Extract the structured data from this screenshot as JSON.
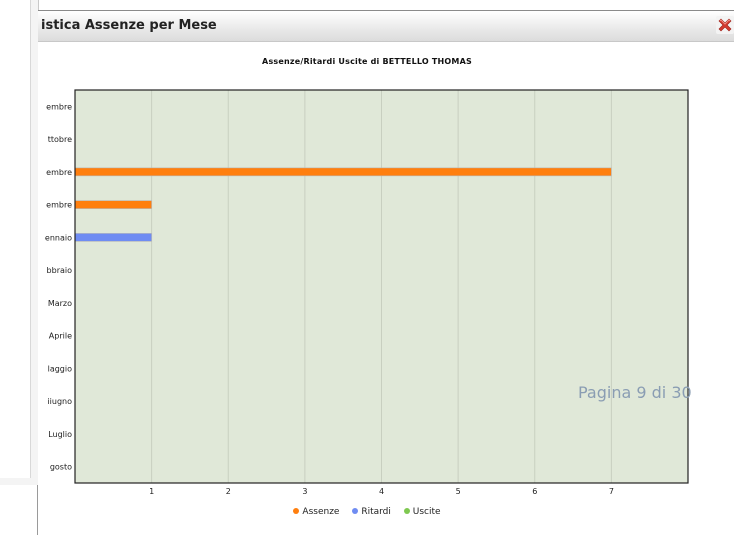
{
  "window": {
    "title": "istica Assenze per Mese",
    "close_icon": "close-icon",
    "close_color": "#d33a2f"
  },
  "watermark": "Pagina 9 di 30",
  "colors": {
    "plot_bg": "#e0e8d8",
    "grid": "#c8cfc0",
    "assenze": "#ff7f0e",
    "ritardi": "#6f8cf2",
    "uscite": "#7ec850"
  },
  "chart_data": {
    "type": "bar",
    "orientation": "horizontal",
    "title": "Assenze/Ritardi Uscite di BETTELLO THOMAS",
    "categories": [
      "embre",
      "ttobre",
      "embre",
      "embre",
      "ennaio",
      "bbraio",
      "Marzo",
      "Aprile",
      "laggio",
      "iiugno",
      "Luglio",
      "gosto"
    ],
    "x_ticks": [
      1,
      2,
      3,
      4,
      5,
      6,
      7
    ],
    "xlim": [
      0,
      8
    ],
    "grid": true,
    "legend_position": "bottom",
    "series": [
      {
        "name": "Assenze",
        "values": [
          0,
          0,
          7,
          1,
          0,
          0,
          0,
          0,
          0,
          0,
          0,
          0
        ]
      },
      {
        "name": "Ritardi",
        "values": [
          0,
          0,
          0,
          0,
          1,
          0,
          0,
          0,
          0,
          0,
          0,
          0
        ]
      },
      {
        "name": "Uscite",
        "values": [
          0,
          0,
          0,
          0,
          0,
          0,
          0,
          0,
          0,
          0,
          0,
          0
        ]
      }
    ]
  }
}
